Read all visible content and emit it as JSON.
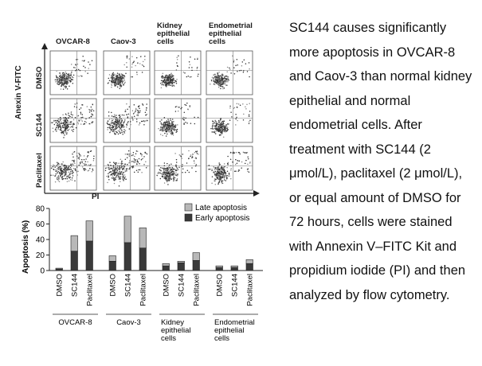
{
  "flow_panel": {
    "columns": [
      "OVCAR-8",
      "Caov-3",
      "Kidney epithelial cells",
      "Endometrial epithelial cells"
    ],
    "columns_display": [
      "OVCAR-8",
      "Caov-3",
      "Kidney\nepithelial\ncells",
      "Endometrial\nepithelial\ncells"
    ],
    "rows": [
      "DMSO",
      "SC144",
      "Paclitaxel"
    ],
    "y_axis_label": "Anexin V-FITC",
    "x_axis_label": "PI"
  },
  "chart_data": {
    "type": "bar",
    "stacked": true,
    "ylabel": "Apoptosis (%)",
    "ylim": [
      0,
      80
    ],
    "yticks": [
      0,
      20,
      40,
      60,
      80
    ],
    "categories": [
      "DMSO",
      "SC144",
      "Paclitaxel",
      "DMSO",
      "SC144",
      "Paclitaxel",
      "DMSO",
      "SC144",
      "Paclitaxel",
      "DMSO",
      "SC144",
      "Paclitaxel"
    ],
    "groups": [
      {
        "label": "OVCAR-8",
        "label_lines": [
          "OVCAR-8"
        ]
      },
      {
        "label": "Caov-3",
        "label_lines": [
          "Caov-3"
        ]
      },
      {
        "label": "Kidney epithelial cells",
        "label_lines": [
          "Kidney",
          "epithelial",
          "cells"
        ]
      },
      {
        "label": "Endometrial epithelial cells",
        "label_lines": [
          "Endometrial",
          "epithelial",
          "cells"
        ]
      }
    ],
    "series": [
      {
        "name": "Early apoptosis",
        "color": "#3a3a3a",
        "values": [
          2,
          25,
          38,
          12,
          36,
          29,
          6,
          10,
          13,
          4,
          4,
          9
        ]
      },
      {
        "name": "Late apoptosis",
        "color": "#b8b8b8",
        "values": [
          1,
          20,
          26,
          7,
          34,
          26,
          3,
          2,
          10,
          2,
          2,
          5
        ]
      }
    ],
    "legend_position": "top-right"
  },
  "caption": "SC144 causes significantly more apoptosis in OVCAR-8 and Caov-3 than normal kidney epithelial and normal endometrial cells. After treatment with SC144 (2 μmol/L), paclitaxel (2 μmol/L), or equal amount of DMSO for 72 hours, cells were stained with Annexin V–FITC Kit and propidium iodide (PI) and then analyzed by flow cytometry."
}
